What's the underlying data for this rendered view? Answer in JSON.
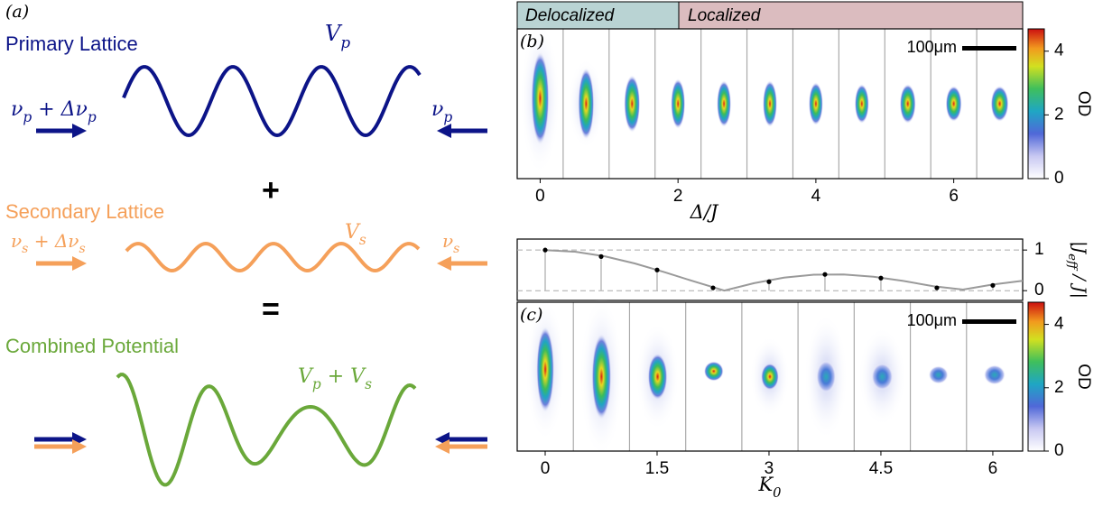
{
  "panel_a": {
    "label": "(a)",
    "primary_title": "Primary Lattice",
    "primary_potential": [
      "V",
      "p"
    ],
    "primary_left": [
      "ν",
      "p",
      " + Δν",
      "p"
    ],
    "primary_right": [
      "ν",
      "p"
    ],
    "plus": "+",
    "secondary_title": "Secondary Lattice",
    "secondary_potential": [
      "V",
      "s"
    ],
    "secondary_left": [
      "ν",
      "s",
      " + Δν",
      "s"
    ],
    "secondary_right": [
      "ν",
      "s"
    ],
    "equals": "=",
    "combined_title": "Combined Potential",
    "combined_potential": [
      "V",
      "p",
      " + V",
      "s"
    ]
  },
  "panel_b": {
    "label": "(b)",
    "regions": [
      "Delocalized",
      "Localized"
    ],
    "scale_bar": "100μm",
    "xlim": [
      -0.333,
      7.0
    ],
    "xticks": [
      0,
      2,
      4,
      6
    ],
    "xlabel": [
      "Δ/J"
    ],
    "colorbar_label": "OD",
    "clim": [
      0,
      4.7
    ],
    "cticks": [
      0,
      2,
      4
    ]
  },
  "panel_c": {
    "label": "(c)",
    "scale_bar": "100μm",
    "colorbar_label": "OD",
    "clim": [
      0,
      4.7
    ],
    "cticks": [
      0,
      2,
      4
    ]
  },
  "chart_data": {
    "type": "line",
    "ylabel": [
      "|J",
      "eff",
      " / J|"
    ],
    "xlabel": [
      "K",
      "0"
    ],
    "xlim": [
      -0.375,
      6.4
    ],
    "ylim": [
      -0.24,
      1.27
    ],
    "xticks": [
      0,
      1.5,
      3,
      4.5,
      6
    ],
    "yticks": [
      0,
      1
    ],
    "grid": true,
    "series": [
      {
        "style": "line",
        "color": "#9a9a9a",
        "x": [
          0,
          0.4,
          0.8,
          1.2,
          1.6,
          2.0,
          2.4,
          2.8,
          3.2,
          3.6,
          4.0,
          4.4,
          4.8,
          5.2,
          5.6,
          6.0,
          6.4
        ],
        "values": [
          1,
          0.96,
          0.846,
          0.671,
          0.455,
          0.224,
          0.003,
          0.185,
          0.32,
          0.392,
          0.397,
          0.342,
          0.24,
          0.11,
          0.027,
          0.151,
          0.243
        ]
      },
      {
        "style": "points",
        "color": "#000000",
        "x": [
          0,
          0.75,
          1.5,
          2.25,
          3,
          3.75,
          4.5,
          5.25,
          6
        ],
        "values": [
          1,
          0.84,
          0.51,
          0.07,
          0.22,
          0.4,
          0.31,
          0.07,
          0.13
        ]
      }
    ]
  }
}
